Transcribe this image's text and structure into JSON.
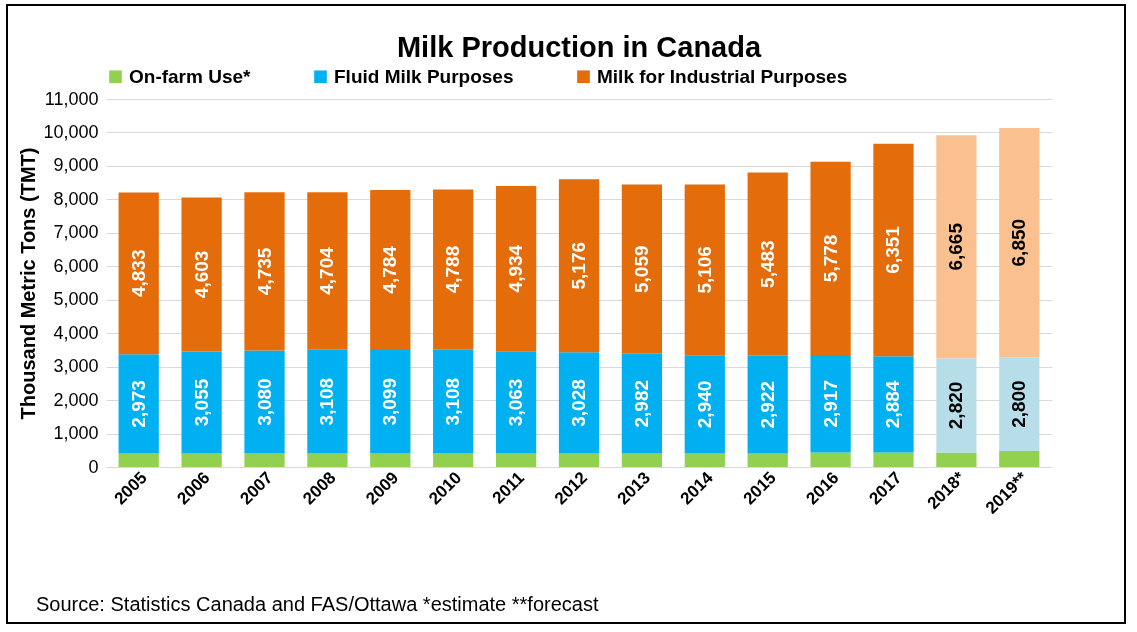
{
  "chart_data": {
    "type": "bar",
    "title": "Milk Production in Canada",
    "ylabel": "Thousand Metric Tons (TMT)",
    "categories": [
      "2005",
      "2006",
      "2007",
      "2008",
      "2009",
      "2010",
      "2011",
      "2012",
      "2013",
      "2014",
      "2015",
      "2016",
      "2017",
      "2018*",
      "2019**"
    ],
    "stacked": true,
    "series": [
      {
        "name": "On-farm Use*",
        "color": "#92d050",
        "values": [
          400,
          400,
          400,
          400,
          400,
          400,
          400,
          400,
          400,
          400,
          400,
          430,
          430,
          430,
          480
        ]
      },
      {
        "name": "Fluid Milk Purposes",
        "color": "#00b0f0",
        "colors": [
          "#00b0f0",
          "#00b0f0",
          "#00b0f0",
          "#00b0f0",
          "#00b0f0",
          "#00b0f0",
          "#00b0f0",
          "#00b0f0",
          "#00b0f0",
          "#00b0f0",
          "#00b0f0",
          "#00b0f0",
          "#00b0f0",
          "#b7dee8",
          "#b7dee8"
        ],
        "values": [
          2973,
          3055,
          3080,
          3108,
          3099,
          3108,
          3063,
          3028,
          2982,
          2940,
          2922,
          2917,
          2884,
          2820,
          2800
        ],
        "value_labels": [
          "2,973",
          "3,055",
          "3,080",
          "3,108",
          "3,099",
          "3,108",
          "3,063",
          "3,028",
          "2,982",
          "2,940",
          "2,922",
          "2,917",
          "2,884",
          "2,820",
          "2,800"
        ]
      },
      {
        "name": "Milk for Industrial Purposes",
        "color": "#e46c0a",
        "colors": [
          "#e46c0a",
          "#e46c0a",
          "#e46c0a",
          "#e46c0a",
          "#e46c0a",
          "#e46c0a",
          "#e46c0a",
          "#e46c0a",
          "#e46c0a",
          "#e46c0a",
          "#e46c0a",
          "#e46c0a",
          "#e46c0a",
          "#fac090",
          "#fac090"
        ],
        "values": [
          4833,
          4603,
          4735,
          4704,
          4784,
          4788,
          4934,
          5176,
          5059,
          5106,
          5483,
          5778,
          6351,
          6665,
          6850
        ],
        "value_labels": [
          "4,833",
          "4,603",
          "4,735",
          "4,704",
          "4,784",
          "4,788",
          "4,934",
          "5,176",
          "5,059",
          "5,106",
          "5,483",
          "5,778",
          "6,351",
          "6,665",
          "6,850"
        ]
      }
    ],
    "ylim": [
      0,
      11000
    ],
    "yticks": [
      0,
      {
        "value": 1000,
        "label": "1,000"
      },
      {
        "value": 2000,
        "label": "2,000"
      },
      {
        "value": 3000,
        "label": "3,000"
      },
      {
        "value": 4000,
        "label": "4,000"
      },
      {
        "value": 5000,
        "label": "5,000"
      },
      {
        "value": 6000,
        "label": "6,000"
      },
      {
        "value": 7000,
        "label": "7,000"
      },
      {
        "value": 8000,
        "label": "8,000"
      },
      {
        "value": 9000,
        "label": "9,000"
      },
      {
        "value": 10000,
        "label": "10,000"
      },
      {
        "value": 11000,
        "label": "11,000"
      }
    ],
    "grid": "y",
    "legend": "top",
    "annotations": [
      "Source: Statistics Canada and FAS/Ottawa *estimate **forecast"
    ]
  }
}
